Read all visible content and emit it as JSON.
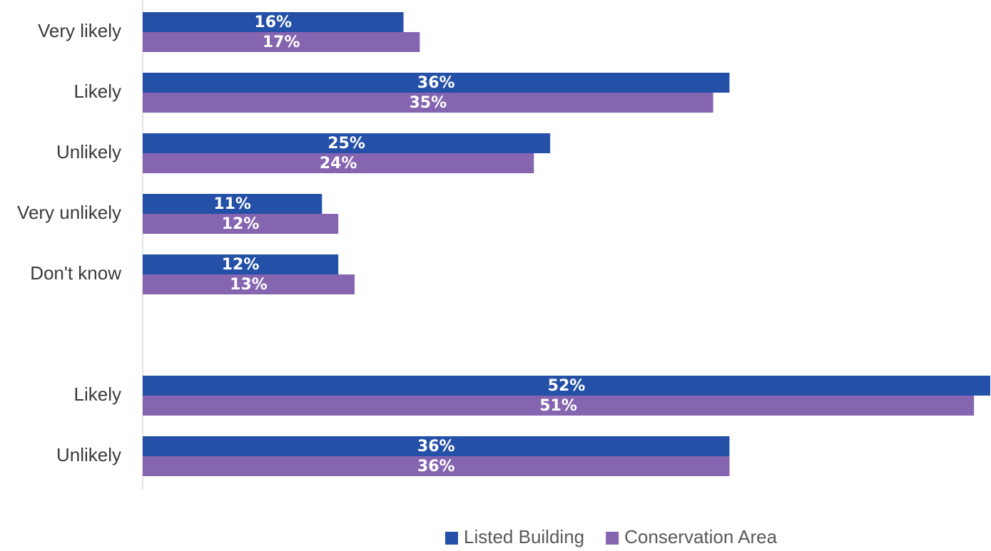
{
  "chart_data": {
    "type": "bar",
    "orientation": "horizontal",
    "categories": [
      "Very likely",
      "Likely",
      "Unlikely",
      "Very unlikely",
      "Don't know",
      "",
      "Likely",
      "Unlikely"
    ],
    "series": [
      {
        "name": "Listed Building",
        "color": "#2450a8",
        "values": [
          16,
          36,
          25,
          11,
          12,
          null,
          52,
          36
        ],
        "labels": [
          "16%",
          "36%",
          "25%",
          "11%",
          "12%",
          "",
          "52%",
          "36%"
        ]
      },
      {
        "name": "Conservation Area",
        "color": "#8564b0",
        "values": [
          17,
          35,
          24,
          12,
          13,
          null,
          51,
          36
        ],
        "labels": [
          "17%",
          "35%",
          "24%",
          "12%",
          "13%",
          "",
          "51%",
          "36%"
        ]
      }
    ],
    "xlim": [
      0,
      52
    ],
    "legend_position": "bottom",
    "grid": false
  }
}
